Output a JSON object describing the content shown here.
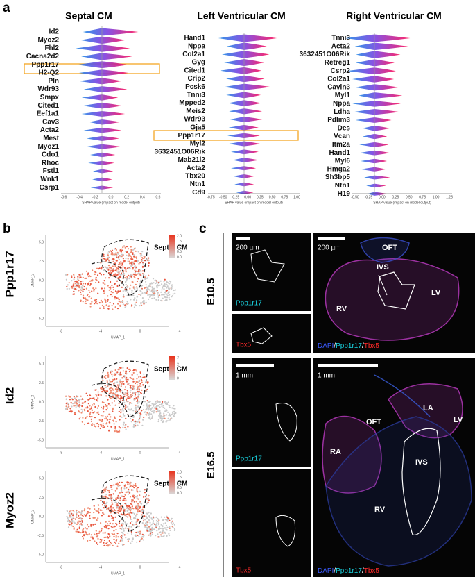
{
  "panel_labels": [
    "a",
    "b",
    "c"
  ],
  "shap_plots": [
    {
      "title": "Septal CM",
      "genes": [
        "Id2",
        "Myoz2",
        "Fhl2",
        "Cacna2d2",
        "Ppp1r17",
        "H2-Q2",
        "Pln",
        "Wdr93",
        "Smpx",
        "Cited1",
        "Eef1a1",
        "Cav3",
        "Acta2",
        "Mest",
        "Myoz1",
        "Cdo1",
        "Rhoc",
        "Fstl1",
        "Wnk1",
        "Csrp1"
      ],
      "xticks": [
        "-0.6",
        "-0.4",
        "-0.2",
        "0.0",
        "0.2",
        "0.4",
        "0.6"
      ],
      "xlabel": "SHAP value (impact on model output)"
    },
    {
      "title": "Left Ventricular CM",
      "genes": [
        "Hand1",
        "Nppa",
        "Col2a1",
        "Gyg",
        "Cited1",
        "Crip2",
        "Pcsk6",
        "Tnni3",
        "Mpped2",
        "Meis2",
        "Wdr93",
        "Gja5",
        "Ppp1r17",
        "Myl2",
        "3632451O06Rik",
        "Mab21l2",
        "Acta2",
        "Tbx20",
        "Ntn1",
        "Cd9"
      ],
      "xticks": [
        "-0.75",
        "-0.50",
        "-0.25",
        "0.00",
        "0.25",
        "0.50",
        "0.75",
        "1.00"
      ],
      "xlabel": "SHAP value (impact on model output)"
    },
    {
      "title": "Right Ventricular CM",
      "genes": [
        "Tnni3",
        "Acta2",
        "3632451O06Rik",
        "Retreg1",
        "Csrp2",
        "Col2a1",
        "Cavin3",
        "Myl1",
        "Nppa",
        "Ldha",
        "Pdlim3",
        "Des",
        "Vcan",
        "Itm2a",
        "Hand1",
        "Myl6",
        "Hmga2",
        "Sh3bp5",
        "Ntn1",
        "H19"
      ],
      "xticks": [
        "-0.50",
        "-0.25",
        "0.00",
        "0.25",
        "0.50",
        "0.75",
        "1.00",
        "1.25"
      ],
      "xlabel": "SHAP value (impact on model output)"
    }
  ],
  "umaps": [
    {
      "gene": "Ppp1r17",
      "cluster_label": "Septal CM",
      "xlabel": "UMAP_1",
      "ylabel": "UMAP_2",
      "xticks": [
        "-8",
        "-4",
        "0",
        "4"
      ],
      "yticks": [
        "5.0",
        "2.5",
        "0.0",
        "-2.5",
        "-5.0"
      ],
      "colorbar": [
        "2.0",
        "1.5",
        "1.0",
        "0.5",
        "0.0"
      ]
    },
    {
      "gene": "Id2",
      "cluster_label": "Septal CM",
      "xlabel": "UMAP_1",
      "ylabel": "UMAP_2",
      "xticks": [
        "-8",
        "-4",
        "0",
        "4"
      ],
      "yticks": [
        "5.0",
        "2.5",
        "0.0",
        "-2.5",
        "-5.0"
      ],
      "colorbar": [
        "3",
        "2",
        "1",
        "0"
      ]
    },
    {
      "gene": "Myoz2",
      "cluster_label": "Septal CM",
      "xlabel": "UMAP_1",
      "ylabel": "UMAP_2",
      "xticks": [
        "-8",
        "-4",
        "0",
        "4"
      ],
      "yticks": [
        "5.0",
        "2.5",
        "0.0",
        "-2.5",
        "-5.0"
      ],
      "colorbar": [
        "2.0",
        "1.5",
        "1.0",
        "0.5",
        "0.0"
      ]
    }
  ],
  "microscopy": [
    {
      "stage": "E10.5",
      "small_scale": "200 µm",
      "big_scale": "200 µm",
      "small_labels": [
        "Ppp1r17",
        "Tbx5"
      ],
      "regions": [
        "OFT",
        "IVS",
        "RV",
        "LV"
      ],
      "legend": [
        "DAPI",
        "/",
        "Ppp1r17",
        "/",
        "Tbx5"
      ]
    },
    {
      "stage": "E16.5",
      "small_scale": "1 mm",
      "big_scale": "1 mm",
      "small_labels": [
        "Ppp1r17",
        "Tbx5"
      ],
      "regions": [
        "LA",
        "OFT",
        "LV",
        "RA",
        "IVS",
        "RV"
      ],
      "legend": [
        "DAPI",
        "/",
        "Ppp1r17",
        "/",
        "Tbx5"
      ]
    }
  ]
}
